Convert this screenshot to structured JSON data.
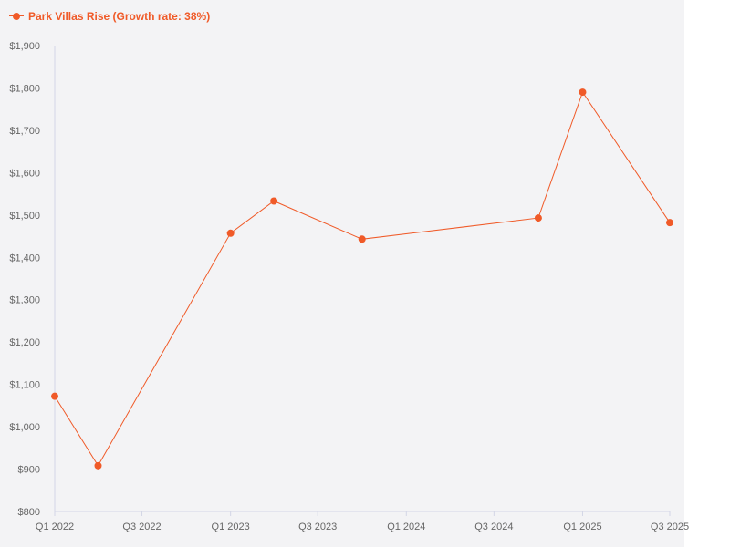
{
  "chart_data": {
    "type": "line",
    "title": "",
    "xlabel": "",
    "ylabel": "",
    "y_ticks": [
      "$800",
      "$900",
      "$1,000",
      "$1,100",
      "$1,200",
      "$1,300",
      "$1,400",
      "$1,500",
      "$1,600",
      "$1,700",
      "$1,800",
      "$1,900"
    ],
    "x_ticks": [
      {
        "label": "Q1 2022",
        "date": "2022-01-01"
      },
      {
        "label": "Q3 2022",
        "date": "2022-07-01"
      },
      {
        "label": "Q1 2023",
        "date": "2023-01-01"
      },
      {
        "label": "Q3 2023",
        "date": "2023-07-01"
      },
      {
        "label": "Q1 2024",
        "date": "2024-01-01"
      },
      {
        "label": "Q3 2024",
        "date": "2024-07-01"
      },
      {
        "label": "Q1 2025",
        "date": "2025-01-01"
      },
      {
        "label": "Q3 2025",
        "date": "2025-07-01"
      }
    ],
    "ylim": [
      800,
      1900
    ],
    "xlim": [
      "2022-01-01",
      "2025-07-01"
    ],
    "grid": false,
    "legend_position": "top-left",
    "series": [
      {
        "name": "Park Villas Rise (Growth rate: 38%)",
        "color": "#f05a28",
        "points": [
          {
            "x": "2022-01-01",
            "y": 1072
          },
          {
            "x": "2022-04-01",
            "y": 908
          },
          {
            "x": "2023-01-01",
            "y": 1457
          },
          {
            "x": "2023-04-01",
            "y": 1533
          },
          {
            "x": "2023-10-01",
            "y": 1443
          },
          {
            "x": "2024-10-01",
            "y": 1493
          },
          {
            "x": "2025-01-01",
            "y": 1790
          },
          {
            "x": "2025-07-01",
            "y": 1482
          }
        ]
      }
    ]
  }
}
